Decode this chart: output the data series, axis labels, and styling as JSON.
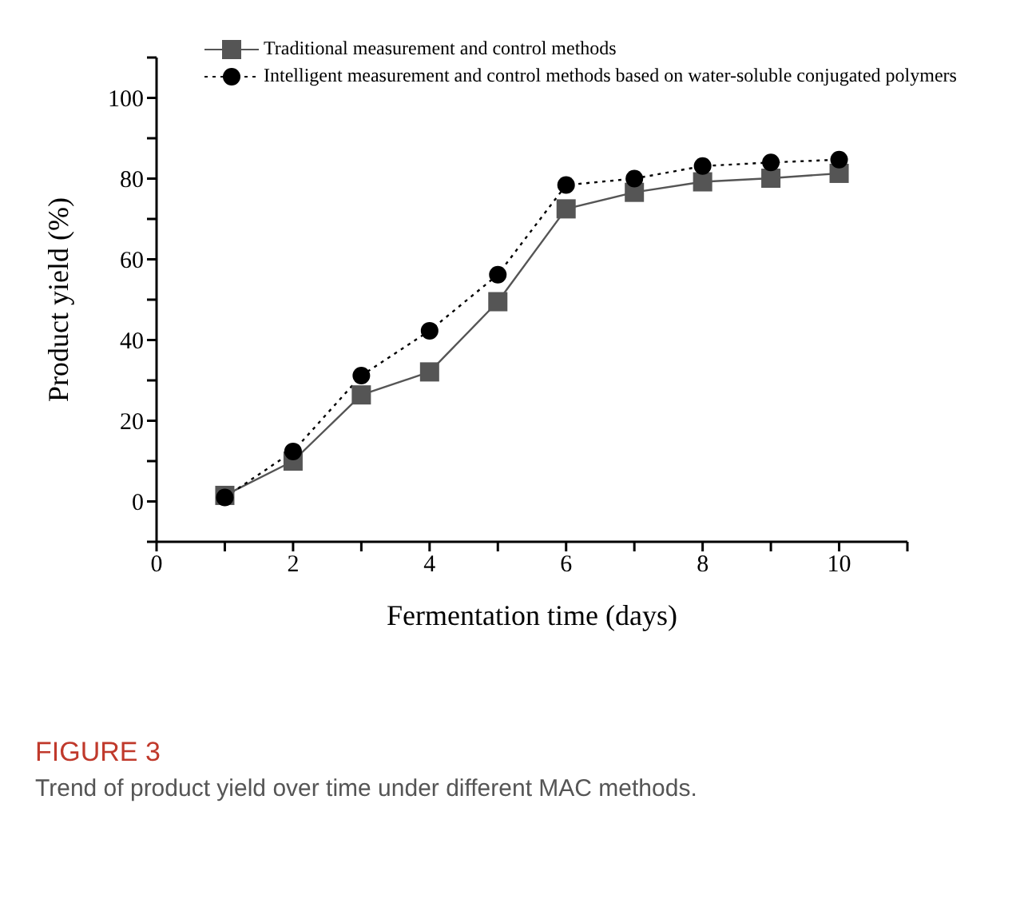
{
  "chart_data": {
    "type": "line",
    "xlabel": "Fermentation time (days)",
    "ylabel": "Product yield (%)",
    "x": [
      1,
      2,
      3,
      4,
      5,
      6,
      7,
      8,
      9,
      10
    ],
    "series": [
      {
        "name": "Traditional measurement and control methods",
        "color": "#555555",
        "marker": "square",
        "line_style": "solid",
        "values": [
          1.5,
          10,
          26.4,
          32.1,
          49.5,
          72.5,
          76.6,
          79.2,
          80.1,
          81.3
        ]
      },
      {
        "name": "Intelligent measurement and control methods based on water-soluble conjugated polymers",
        "color": "#000000",
        "marker": "circle",
        "line_style": "dotted",
        "values": [
          1,
          12.4,
          31.2,
          42.3,
          56.2,
          78.4,
          80,
          83.1,
          84,
          84.7
        ]
      }
    ],
    "xlim": [
      0,
      11
    ],
    "xticks": [
      0,
      {
        "value": 1,
        "label": null
      },
      2,
      {
        "value": 3,
        "label": null
      },
      4,
      {
        "value": 5,
        "label": null
      },
      6,
      {
        "value": 7,
        "label": null
      },
      8,
      {
        "value": 9,
        "label": null
      },
      10,
      {
        "value": 11,
        "label": null
      }
    ],
    "ylim": [
      -10,
      110
    ],
    "yticks": [
      {
        "value": -10,
        "label": null
      },
      0,
      {
        "value": 10,
        "label": null
      },
      20,
      {
        "value": 30,
        "label": null
      },
      40,
      {
        "value": 50,
        "label": null
      },
      60,
      {
        "value": 70,
        "label": null
      },
      80,
      {
        "value": 90,
        "label": null
      },
      100,
      {
        "value": 110,
        "label": null
      }
    ],
    "grid": false,
    "legend": "top",
    "annotations": [
      "FIGURE 3",
      "Trend of product yield over time under different MAC methods."
    ]
  }
}
